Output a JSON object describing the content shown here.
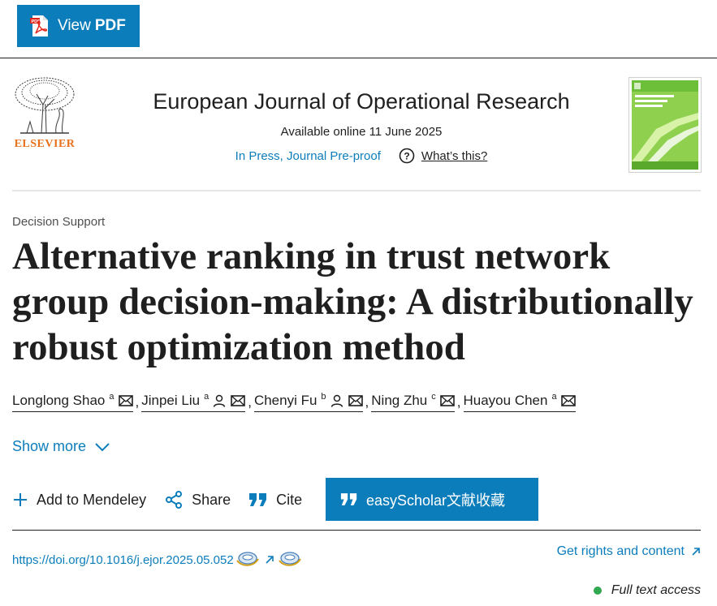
{
  "toolbar": {
    "view_pdf_a": "View",
    "view_pdf_b": "PDF"
  },
  "journal": {
    "publisher": "ELSEVIER",
    "title": "European Journal of Operational Research",
    "available": "Available online 11 June 2025",
    "press": "In Press, Journal Pre-proof",
    "whats_this": "What’s this?"
  },
  "article": {
    "section": "Decision Support",
    "title": "Alternative ranking in trust network group decision-making: A distributionally robust optimization method",
    "authors": [
      {
        "name": "Longlong Shao",
        "aff": "a"
      },
      {
        "name": "Jinpei Liu",
        "aff": "a"
      },
      {
        "name": "Chenyi Fu",
        "aff": "b"
      },
      {
        "name": "Ning Zhu",
        "aff": "c"
      },
      {
        "name": "Huayou Chen",
        "aff": "a"
      }
    ],
    "separator": ",",
    "show_more": "Show more"
  },
  "actions": {
    "mendeley": "Add to Mendeley",
    "share": "Share",
    "cite": "Cite",
    "easyscholar": "easyScholar文献收藏"
  },
  "links": {
    "doi": "https://doi.org/10.1016/j.ejor.2025.05.052",
    "rights": "Get rights and content",
    "access": "Full text access"
  },
  "colors": {
    "accent": "#0c7dbb",
    "elsevier_orange": "#e9711c",
    "access_green": "#2fa84f"
  },
  "icons": [
    "pdf-icon",
    "question-icon",
    "mail-icon",
    "person-icon",
    "chevron-down-icon",
    "plus-icon",
    "share-icon",
    "quote-icon",
    "external-arrow-icon"
  ]
}
